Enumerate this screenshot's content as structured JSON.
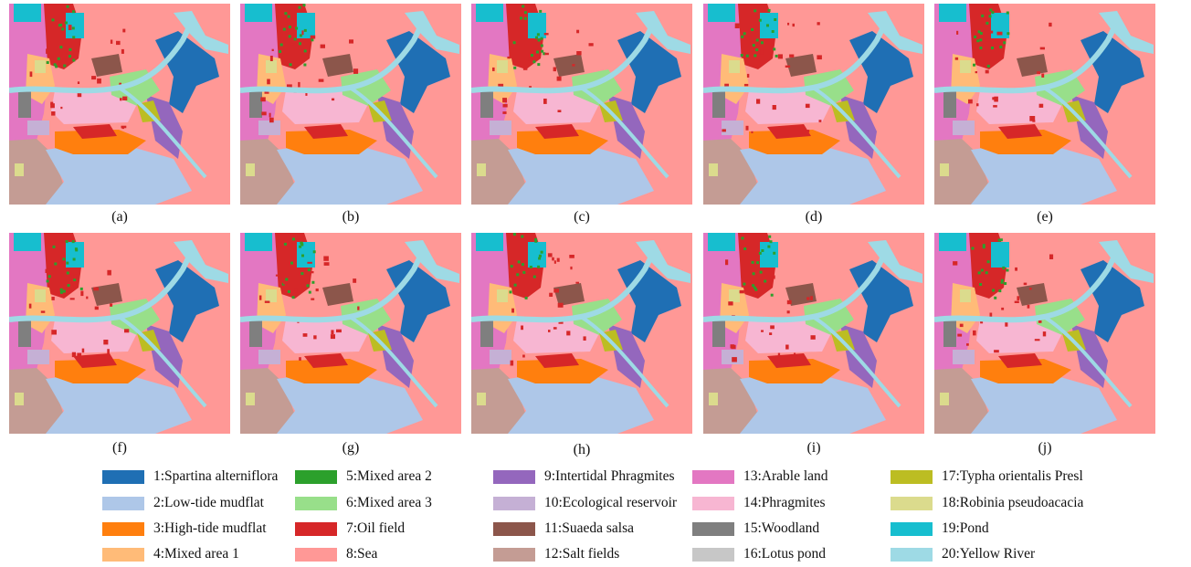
{
  "panels": [
    {
      "label": "(a)"
    },
    {
      "label": "(b)"
    },
    {
      "label": "(c)"
    },
    {
      "label": "(d)"
    },
    {
      "label": "(e)"
    },
    {
      "label": "(f)"
    },
    {
      "label": "(g)"
    },
    {
      "label": "(h)"
    },
    {
      "label": "(i)"
    },
    {
      "label": "(j)"
    }
  ],
  "legend": [
    {
      "label": "1:Spartina alterniflora",
      "color": "#1f6fb4"
    },
    {
      "label": "2:Low-tide mudflat",
      "color": "#aec7e8"
    },
    {
      "label": "3:High-tide mudflat",
      "color": "#ff7f0e"
    },
    {
      "label": "4:Mixed area 1",
      "color": "#ffbb78"
    },
    {
      "label": "5:Mixed area 2",
      "color": "#2ca02c"
    },
    {
      "label": "6:Mixed area 3",
      "color": "#98df8a"
    },
    {
      "label": "7:Oil field",
      "color": "#d62728"
    },
    {
      "label": "8:Sea",
      "color": "#ff9896"
    },
    {
      "label": "9:Intertidal Phragmites",
      "color": "#9467bd"
    },
    {
      "label": "10:Ecological reservoir",
      "color": "#c5b0d5"
    },
    {
      "label": "11:Suaeda salsa",
      "color": "#8c564b"
    },
    {
      "label": "12:Salt fields",
      "color": "#c49c94"
    },
    {
      "label": "13:Arable land",
      "color": "#e377c2"
    },
    {
      "label": "14:Phragmites",
      "color": "#f7b6d2"
    },
    {
      "label": "15:Woodland",
      "color": "#7f7f7f"
    },
    {
      "label": "16:Lotus pond",
      "color": "#c7c7c7"
    },
    {
      "label": "17:Typha orientalis Presl",
      "color": "#bcbd22"
    },
    {
      "label": "18:Robinia pseudoacacia",
      "color": "#dbdb8d"
    },
    {
      "label": "19:Pond",
      "color": "#17becf"
    },
    {
      "label": "20:Yellow River",
      "color": "#9edae5"
    }
  ]
}
